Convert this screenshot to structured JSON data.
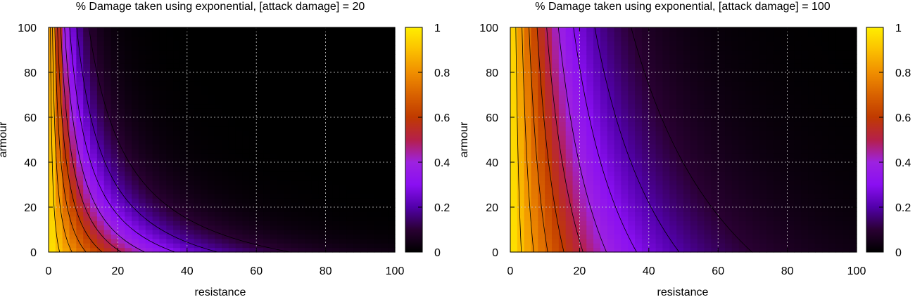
{
  "colors": {
    "background": "#ffffff",
    "axis": "#000000",
    "grid": "#d0d0d0",
    "contour": "#000000"
  },
  "chart_data": [
    {
      "type": "heatmap",
      "title": "% Damage taken using exponential, [attack damage] = 20",
      "attack_damage": 20,
      "xlabel": "resistance",
      "ylabel": "armour",
      "xlim": [
        0,
        100
      ],
      "ylim": [
        0,
        100
      ],
      "xticks": [
        0,
        20,
        40,
        60,
        80,
        100
      ],
      "yticks": [
        0,
        20,
        40,
        60,
        80,
        100
      ],
      "colorbar": {
        "range": [
          0,
          1
        ],
        "ticks": [
          0,
          0.2,
          0.4,
          0.6,
          0.8,
          1
        ],
        "tick_labels": [
          "0",
          "0.2",
          "0.4",
          "0.6",
          "0.8",
          "1"
        ]
      },
      "grid": true,
      "contour_levels": [
        0.1,
        0.2,
        0.3,
        0.4,
        0.5,
        0.6,
        0.7,
        0.8,
        0.9
      ]
    },
    {
      "type": "heatmap",
      "title": "% Damage taken using exponential, [attack damage] = 100",
      "attack_damage": 100,
      "xlabel": "resistance",
      "ylabel": "armour",
      "xlim": [
        0,
        100
      ],
      "ylim": [
        0,
        100
      ],
      "xticks": [
        0,
        20,
        40,
        60,
        80,
        100
      ],
      "yticks": [
        0,
        20,
        40,
        60,
        80,
        100
      ],
      "colorbar": {
        "range": [
          0,
          1
        ],
        "ticks": [
          0,
          0.2,
          0.4,
          0.6,
          0.8,
          1
        ],
        "tick_labels": [
          "0",
          "0.2",
          "0.4",
          "0.6",
          "0.8",
          "1"
        ]
      },
      "grid": true,
      "contour_levels": [
        0.1,
        0.2,
        0.3,
        0.4,
        0.5,
        0.6,
        0.7,
        0.8,
        0.9
      ]
    }
  ]
}
